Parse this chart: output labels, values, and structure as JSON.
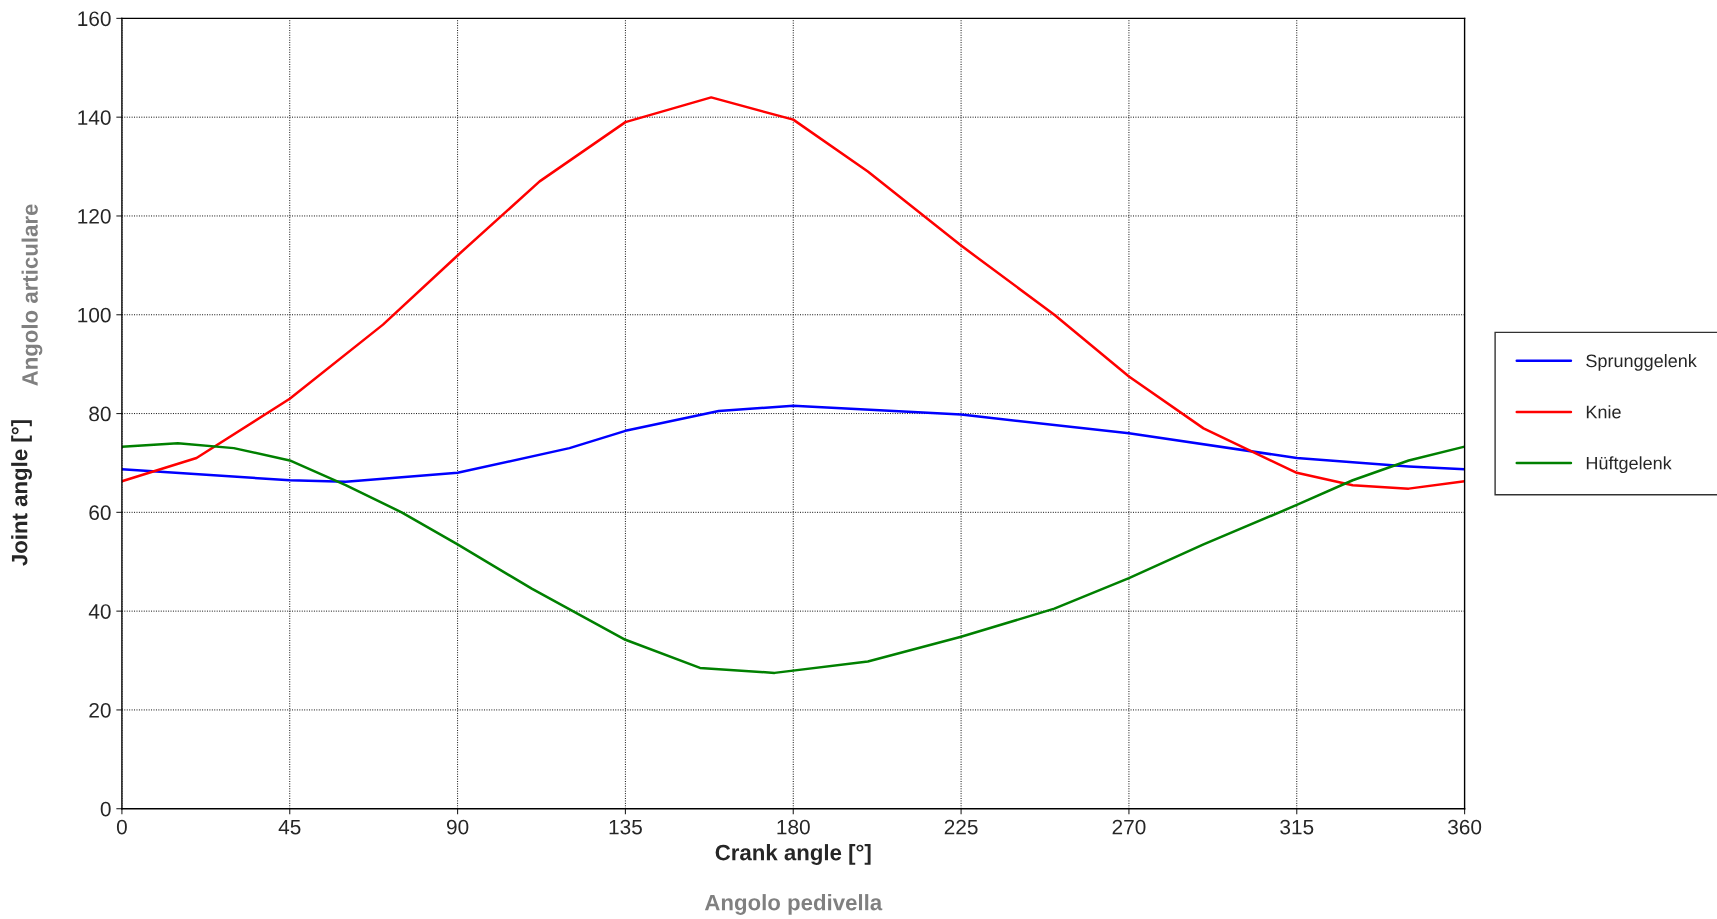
{
  "chart_data": {
    "type": "line",
    "xlabel": "Crank angle [°]",
    "ylabel": "Joint angle [°]",
    "annotations": [
      "Angolo pedivella",
      "Angolo articulare"
    ],
    "xlim": [
      0,
      360
    ],
    "xticks": [
      0,
      45,
      90,
      135,
      180,
      225,
      270,
      315,
      360
    ],
    "ylim": [
      0,
      160
    ],
    "yticks": [
      0,
      20,
      40,
      60,
      80,
      100,
      120,
      140,
      160
    ],
    "grid": true,
    "legend": "right",
    "marker": "none",
    "line_style": "solid",
    "series": [
      {
        "name": "Sprunggelenk",
        "color": "#0000ff",
        "x": [
          0,
          45,
          60,
          90,
          120,
          135,
          160,
          180,
          225,
          270,
          315,
          345,
          360
        ],
        "values": [
          68.7,
          66.5,
          66.2,
          68,
          73,
          76.5,
          80.5,
          81.6,
          79.8,
          76,
          71,
          69.3,
          68.7
        ]
      },
      {
        "name": "Knie",
        "color": "#ff0000",
        "x": [
          0,
          20,
          45,
          70,
          90,
          112,
          135,
          158,
          180,
          200,
          225,
          250,
          270,
          290,
          315,
          330,
          345,
          360
        ],
        "values": [
          66.3,
          71,
          83,
          98,
          112,
          127,
          139,
          144,
          139.5,
          129,
          114,
          100,
          87.5,
          77,
          68,
          65.5,
          64.8,
          66.3
        ]
      },
      {
        "name": "Hüftgelenk",
        "color": "#008000",
        "x": [
          0,
          15,
          30,
          45,
          60,
          75,
          90,
          110,
          135,
          155,
          175,
          200,
          225,
          250,
          270,
          290,
          315,
          330,
          345,
          360
        ],
        "values": [
          73.3,
          74,
          73,
          70.5,
          65.5,
          60,
          53.5,
          44.5,
          34.2,
          28.5,
          27.5,
          29.8,
          34.8,
          40.5,
          46.7,
          53.5,
          61.5,
          66.5,
          70.5,
          73.3
        ]
      }
    ]
  }
}
